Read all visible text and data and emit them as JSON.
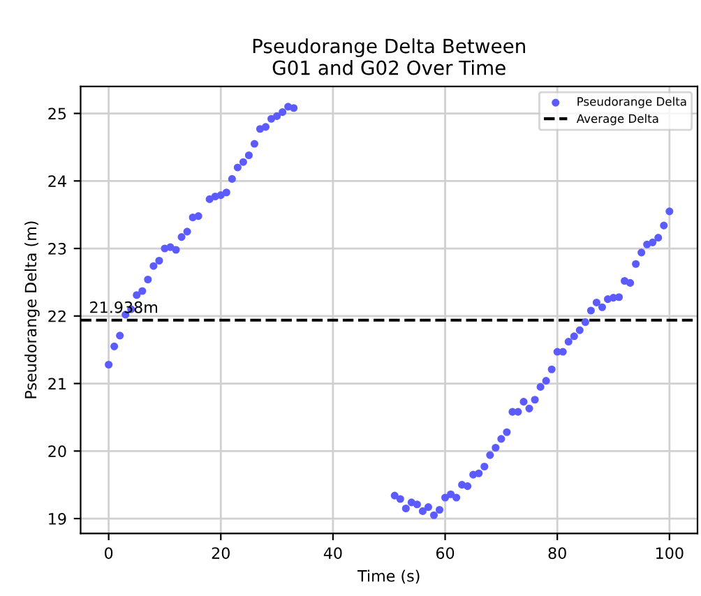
{
  "chart_data": {
    "type": "scatter",
    "title": "Pseudorange Delta Between\nG01 and G02 Over Time",
    "xlabel": "Time (s)",
    "ylabel": "Pseudorange Delta (m)",
    "series": [
      {
        "name": "Pseudorange Delta",
        "color": "#5b5bff",
        "marker": "circle",
        "x": [
          0,
          1,
          2,
          3,
          4,
          5,
          6,
          7,
          8,
          9,
          10,
          11,
          12,
          13,
          14,
          15,
          16,
          18,
          19,
          20,
          21,
          22,
          23,
          24,
          25,
          26,
          27,
          28,
          29,
          30,
          31,
          32,
          33,
          51,
          52,
          53,
          54,
          55,
          56,
          57,
          58,
          59,
          60,
          61,
          62,
          63,
          64,
          65,
          66,
          67,
          68,
          69,
          70,
          71,
          72,
          73,
          74,
          75,
          76,
          77,
          78,
          79,
          80,
          81,
          82,
          83,
          84,
          85,
          86,
          87,
          88,
          89,
          90,
          91,
          92,
          93,
          94,
          95,
          96,
          97,
          98,
          99,
          100
        ],
        "values": [
          21.28,
          21.55,
          21.71,
          22.02,
          22.1,
          22.31,
          22.37,
          22.54,
          22.74,
          22.82,
          23.0,
          23.02,
          22.98,
          23.17,
          23.25,
          23.46,
          23.48,
          23.73,
          23.77,
          23.79,
          23.83,
          24.03,
          24.2,
          24.28,
          24.38,
          24.55,
          24.77,
          24.8,
          24.92,
          24.96,
          25.02,
          25.1,
          25.08,
          19.34,
          19.29,
          19.15,
          19.24,
          19.21,
          19.11,
          19.17,
          19.05,
          19.13,
          19.31,
          19.36,
          19.31,
          19.5,
          19.48,
          19.65,
          19.67,
          19.77,
          19.94,
          20.05,
          20.18,
          20.28,
          20.58,
          20.58,
          20.73,
          20.63,
          20.76,
          20.95,
          21.04,
          21.21,
          21.47,
          21.47,
          21.62,
          21.7,
          21.79,
          21.91,
          22.08,
          22.2,
          22.13,
          22.25,
          22.27,
          22.28,
          22.52,
          22.49,
          22.77,
          22.94,
          23.06,
          23.09,
          23.16,
          23.34,
          23.55
        ]
      },
      {
        "name": "Average Delta",
        "type": "line",
        "color": "#000000",
        "line_style": "dashed",
        "marker": "none",
        "x": [
          -5,
          105
        ],
        "values": [
          21.938,
          21.938
        ]
      }
    ],
    "annotations": [
      {
        "text": "21.938m",
        "x": -3.5,
        "y": 21.938
      }
    ],
    "xlim": [
      -5,
      105
    ],
    "ylim": [
      18.78,
      25.4
    ],
    "xticks": [
      0,
      20,
      40,
      60,
      80,
      100
    ],
    "yticks": [
      19,
      20,
      21,
      22,
      23,
      24,
      25
    ],
    "grid": true,
    "legend": "top right"
  }
}
